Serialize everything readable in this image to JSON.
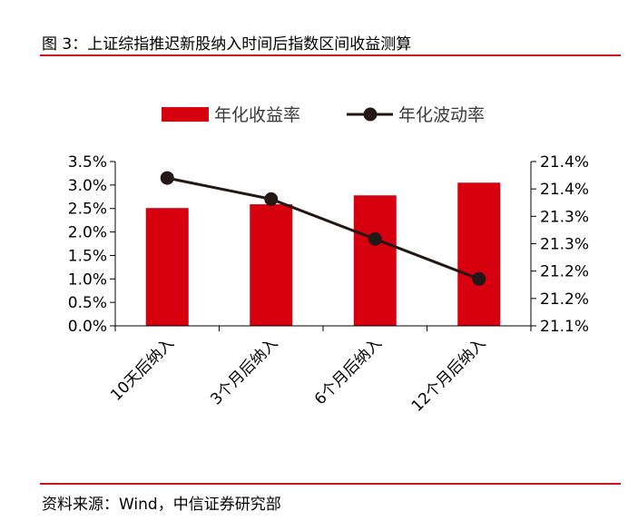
{
  "figure_title": "图 3：上证综指推迟新股纳入时间后指数区间收益测算",
  "source": "资料来源：Wind，中信证券研究部",
  "colors": {
    "bar": "#d7000f",
    "line": "#231815",
    "rule": "#c4161c"
  },
  "chart_data": {
    "type": "bar",
    "title": "",
    "xlabel": "",
    "ylabel": "",
    "categories": [
      "10天后纳入",
      "3个月后纳入",
      "6个月后纳入",
      "12个月后纳入"
    ],
    "series": [
      {
        "name": "年化收益率",
        "type": "bar",
        "axis": "left",
        "values": [
          0.0251,
          0.0259,
          0.0278,
          0.0305
        ]
      },
      {
        "name": "年化波动率",
        "type": "line",
        "axis": "right",
        "values": [
          0.21415,
          0.2137,
          0.21285,
          0.212
        ]
      }
    ],
    "y_left": {
      "range": [
        0,
        0.035
      ],
      "ticks": [
        "0.0%",
        "0.5%",
        "1.0%",
        "1.5%",
        "2.0%",
        "2.5%",
        "3.0%",
        "3.5%"
      ]
    },
    "y_right": {
      "range": [
        0.211,
        0.2145
      ],
      "ticks": [
        "21.1%",
        "21.2%",
        "21.2%",
        "21.3%",
        "21.3%",
        "21.4%",
        "21.4%"
      ]
    },
    "legend": "top",
    "grid": false
  }
}
